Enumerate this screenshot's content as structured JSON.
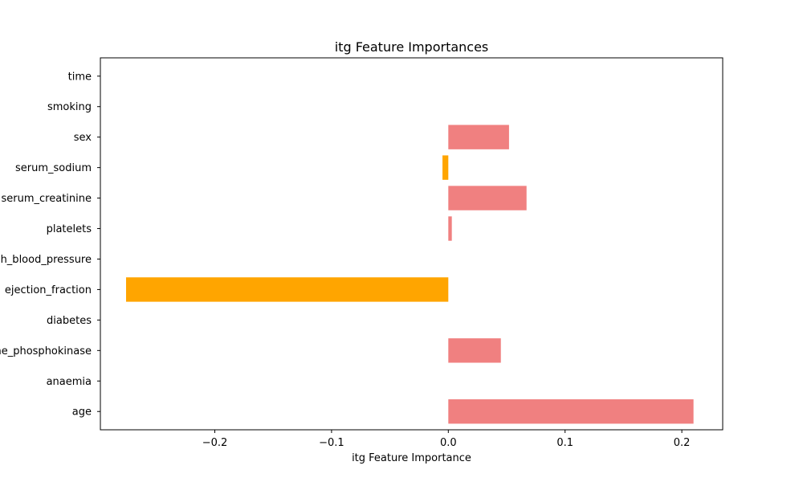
{
  "chart_data": {
    "type": "bar",
    "orientation": "horizontal",
    "title": "itg Feature Importances",
    "xlabel": "itg Feature Importance",
    "ylabel": "",
    "categories": [
      "age",
      "anaemia",
      "creatinine_phosphokinase",
      "diabetes",
      "ejection_fraction",
      "high_blood_pressure",
      "platelets",
      "serum_creatinine",
      "serum_sodium",
      "sex",
      "smoking",
      "time"
    ],
    "values": [
      0.21,
      0.0,
      0.045,
      0.0,
      -0.276,
      0.0,
      0.003,
      0.067,
      -0.005,
      0.052,
      0.0,
      0.0
    ],
    "xlim": [
      -0.298,
      0.235
    ],
    "xticks": [
      -0.2,
      -0.1,
      0.0,
      0.1,
      0.2
    ],
    "xtick_labels": [
      "−0.2",
      "−0.1",
      "0.0",
      "0.1",
      "0.2"
    ],
    "grid": false,
    "colors": {
      "positive": "#f08080",
      "negative": "#ffa500"
    }
  }
}
